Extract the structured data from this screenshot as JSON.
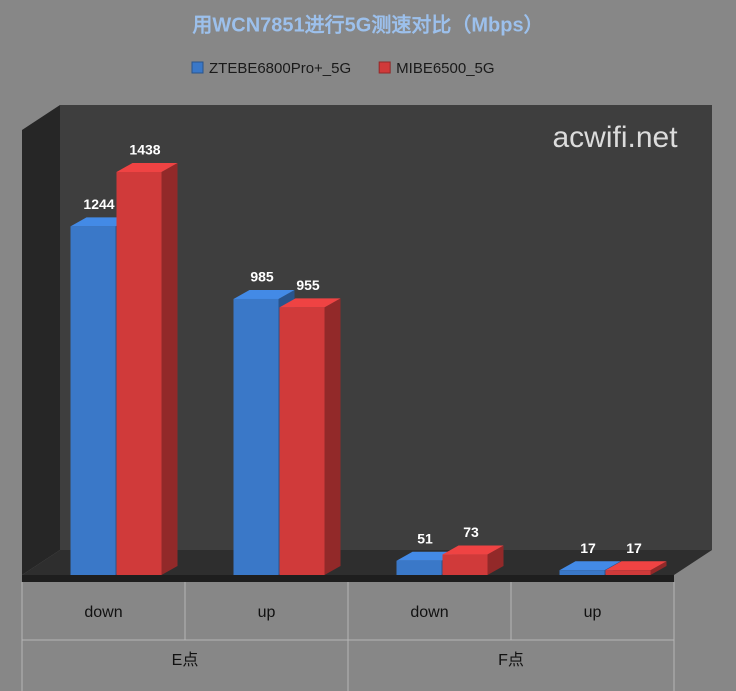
{
  "chart_data": {
    "type": "bar3d",
    "title": "用WCN7851进行5G测速对比（Mbps）",
    "categories": [
      "down",
      "up",
      "down",
      "up"
    ],
    "group_labels": [
      "E点",
      "F点"
    ],
    "series": [
      {
        "name": "ZTEBE6800Pro+_5G",
        "color": "#3a78c8",
        "values": [
          1244,
          985,
          51,
          17
        ]
      },
      {
        "name": "MIBE6500_5G",
        "color": "#d03a3a",
        "values": [
          1438,
          955,
          73,
          17
        ]
      }
    ],
    "annotation": "acwifi.net"
  }
}
